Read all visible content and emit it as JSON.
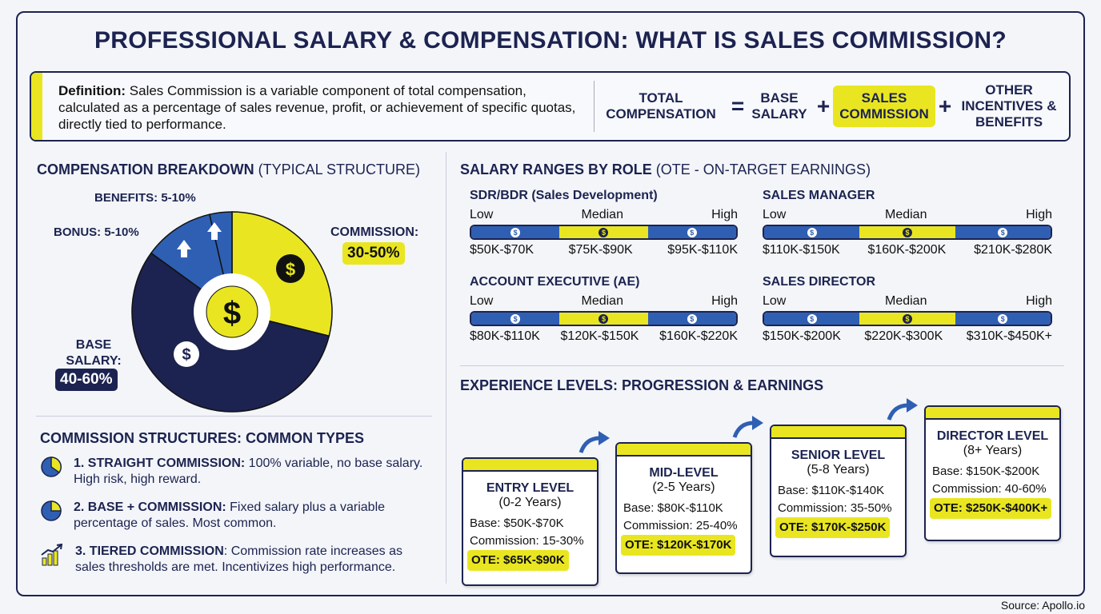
{
  "title": "PROFESSIONAL SALARY & COMPENSATION: WHAT IS SALES COMMISSION?",
  "definition": {
    "label": "Definition:",
    "text": " Sales Commission is a variable component of total compensation, calculated as a percentage of sales revenue, profit, or achievement of specific quotas, directly tied to performance."
  },
  "equation": {
    "total": "TOTAL COMPENSATION",
    "eq": "=",
    "base": "BASE SALARY",
    "plus": "+",
    "commission": "SALES COMMISSION",
    "other": "OTHER INCENTIVES & BENEFITS"
  },
  "breakdown": {
    "title": "COMPENSATION BREAKDOWN",
    "subtitle": " (TYPICAL STRUCTURE)",
    "benefits": "BENEFITS: 5-10%",
    "bonus": "BONUS: 5-10%",
    "commission_label": "COMMISSION:",
    "commission_value": "30-50%",
    "base_label": "BASE SALARY:",
    "base_value": "40-60%",
    "colors": {
      "commission": "#e9e621",
      "base": "#1c2350",
      "bonus": "#2f5fb3",
      "benefits": "#2f5fb3"
    }
  },
  "structures": {
    "title": "COMMISSION STRUCTURES: COMMON TYPES",
    "items": [
      {
        "name": "1. STRAIGHT COMMISSION:",
        "desc": " 100% variable, no base salary. High risk, high reward.",
        "icon": "pie-chart-icon"
      },
      {
        "name": "2. BASE + COMMISSION:",
        "desc": " Fixed salary plus a variable percentage of sales. Most common.",
        "icon": "pie-chart-icon"
      },
      {
        "name": "3. TIERED COMMISSION",
        "desc": ": Commission rate increases as sales thresholds are met. Incentivizes high performance.",
        "icon": "bar-chart-trend-icon"
      }
    ]
  },
  "ranges": {
    "title": "SALARY RANGES BY ROLE",
    "subtitle": " (OTE - ON-TARGET EARNINGS)",
    "low": "Low",
    "median": "Median",
    "high": "High",
    "roles": [
      {
        "name": "SDR/BDR (Sales Development)",
        "values": [
          "$50K-$70K",
          "$75K-$90K",
          "$95K-$110K"
        ]
      },
      {
        "name": "SALES MANAGER",
        "values": [
          "$110K-$150K",
          "$160K-$200K",
          "$210K-$280K"
        ]
      },
      {
        "name": "ACCOUNT EXECUTIVE (AE)",
        "values": [
          "$80K-$110K",
          "$120K-$150K",
          "$160K-$220K"
        ]
      },
      {
        "name": "SALES DIRECTOR",
        "values": [
          "$150K-$200K",
          "$220K-$300K",
          "$310K-$450K+"
        ]
      }
    ]
  },
  "experience": {
    "title": "EXPERIENCE LEVELS: PROGRESSION & EARNINGS",
    "levels": [
      {
        "name": "ENTRY LEVEL",
        "years": "(0-2 Years)",
        "base": "Base: $50K-$70K",
        "commission": "Commission: 15-30%",
        "ote": "OTE: $65K-$90K"
      },
      {
        "name": "MID-LEVEL",
        "years": "(2-5 Years)",
        "base": "Base: $80K-$110K",
        "commission": "Commission: 25-40%",
        "ote": "OTE: $120K-$170K"
      },
      {
        "name": "SENIOR LEVEL",
        "years": "(5-8 Years)",
        "base": "Base: $110K-$140K",
        "commission": "Commission: 35-50%",
        "ote": "OTE: $170K-$250K"
      },
      {
        "name": "DIRECTOR LEVEL",
        "years": "(8+ Years)",
        "base": "Base: $150K-$200K",
        "commission": "Commission: 40-60%",
        "ote": "OTE: $250K-$400K+"
      }
    ]
  },
  "source": "Source: Apollo.io"
}
